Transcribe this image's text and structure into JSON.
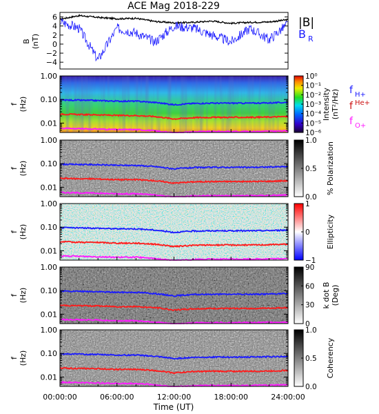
{
  "title": "ACE Mag 2018-229",
  "xlabel": "Time (UT)",
  "time_ticks": [
    "00:00:00",
    "06:00:00",
    "12:00:00",
    "18:00:00",
    "24:00:00"
  ],
  "colors": {
    "B_total": "#000000",
    "B_R": "#1a1aff",
    "f_Hplus": "#1a1aff",
    "f_Heplus": "#ff1a1a",
    "f_Oplus": "#ff1aff"
  },
  "panel_b": {
    "ylabel_top": "B",
    "ylabel_bottom": "(nT)",
    "ytick_labels": [
      "6",
      "4",
      "2",
      "0",
      "−2",
      "−4"
    ],
    "legend_total": "|B|",
    "legend_r_main": "B",
    "legend_r_sub": "R"
  },
  "freq_axis": {
    "ylabel_top": "f",
    "ylabel_bottom": "(Hz)",
    "ytick_labels": [
      "1.00",
      "0.10",
      "0.01"
    ]
  },
  "gyro_legend": {
    "h_main": "f",
    "h_sub": "H+",
    "he_main": "f",
    "he_sub": "He+",
    "o_main": "f",
    "o_sub": "O+"
  },
  "colorbars": {
    "intensity": {
      "label_lines": [
        "Intensity",
        "(nT²/Hz)"
      ],
      "tick_labels": [
        "10⁰",
        "10⁻¹",
        "10⁻²",
        "10⁻³",
        "10⁻⁴",
        "10⁻⁵",
        "10⁻⁶"
      ],
      "scale": "rainbow"
    },
    "polarization": {
      "label_lines": [
        "% Polarization"
      ],
      "tick_labels": [
        "1.0",
        "0.5",
        "0.0"
      ],
      "scale": "gray"
    },
    "ellipticity": {
      "label_lines": [
        "Ellipticity"
      ],
      "tick_labels": [
        "1",
        "0",
        "−1"
      ],
      "scale": "blue-white-red"
    },
    "kdotb": {
      "label_lines": [
        "k dot B",
        "(Deg)"
      ],
      "tick_labels": [
        "90",
        "60",
        "30",
        "0"
      ],
      "scale": "gray"
    },
    "coherency": {
      "label_lines": [
        "Coherency"
      ],
      "tick_labels": [
        "1.0",
        "0.5",
        "0.0"
      ],
      "scale": "gray"
    }
  },
  "chart_data": [
    {
      "type": "line",
      "x_unit": "hours UT",
      "x": [
        0,
        2,
        4,
        6,
        8,
        10,
        12,
        14,
        16,
        18,
        20,
        22,
        24
      ],
      "xlim": [
        0,
        24
      ],
      "ylim": [
        -5.5,
        7
      ],
      "series": [
        {
          "name": "|B|",
          "values": [
            5.5,
            6.3,
            5.9,
            5.6,
            5.7,
            5.0,
            4.7,
            4.8,
            5.1,
            4.6,
            4.8,
            4.9,
            5.4
          ]
        },
        {
          "name": "B_R",
          "values": [
            5.0,
            3.5,
            -3.5,
            3.5,
            2.5,
            0.5,
            4.0,
            3.6,
            2.0,
            0.5,
            3.5,
            1.0,
            4.5
          ]
        }
      ]
    },
    {
      "type": "heatmap",
      "quantity": "Intensity",
      "units": "nT^2/Hz",
      "scale": "log",
      "x_unit": "hours UT",
      "y_unit": "Hz",
      "xlim": [
        0,
        24
      ],
      "ylim": [
        0.004,
        1.0
      ],
      "zlim": [
        1e-06,
        1.0
      ]
    },
    {
      "type": "heatmap",
      "quantity": "% Polarization",
      "x_unit": "hours UT",
      "y_unit": "Hz",
      "xlim": [
        0,
        24
      ],
      "ylim": [
        0.004,
        1.0
      ],
      "zlim": [
        0.0,
        1.0
      ]
    },
    {
      "type": "heatmap",
      "quantity": "Ellipticity",
      "x_unit": "hours UT",
      "y_unit": "Hz",
      "xlim": [
        0,
        24
      ],
      "ylim": [
        0.004,
        1.0
      ],
      "zlim": [
        -1,
        1
      ]
    },
    {
      "type": "heatmap",
      "quantity": "k dot B",
      "units": "Deg",
      "x_unit": "hours UT",
      "y_unit": "Hz",
      "xlim": [
        0,
        24
      ],
      "ylim": [
        0.004,
        1.0
      ],
      "zlim": [
        0,
        90
      ]
    },
    {
      "type": "heatmap",
      "quantity": "Coherency",
      "x_unit": "hours UT",
      "y_unit": "Hz",
      "xlim": [
        0,
        24
      ],
      "ylim": [
        0.004,
        1.0
      ],
      "zlim": [
        0.0,
        1.0
      ]
    },
    {
      "type": "line",
      "description": "ion gyrofrequency overlays drawn on every spectral panel",
      "x_unit": "hours UT",
      "y_unit": "Hz",
      "x": [
        0,
        2,
        4,
        6,
        8,
        10,
        12,
        14,
        16,
        18,
        20,
        22,
        24
      ],
      "series": [
        {
          "name": "f_H+",
          "values": [
            0.095,
            0.093,
            0.09,
            0.085,
            0.085,
            0.075,
            0.06,
            0.068,
            0.07,
            0.07,
            0.07,
            0.072,
            0.075
          ]
        },
        {
          "name": "f_He+",
          "values": [
            0.024,
            0.023,
            0.0225,
            0.021,
            0.021,
            0.019,
            0.015,
            0.017,
            0.0175,
            0.0175,
            0.0175,
            0.018,
            0.019
          ]
        },
        {
          "name": "f_O+",
          "values": [
            0.006,
            0.0058,
            0.0056,
            0.0053,
            0.0053,
            0.0047,
            0.0038,
            0.0043,
            0.0044,
            0.0044,
            0.0044,
            0.0045,
            0.0047
          ]
        }
      ]
    }
  ]
}
